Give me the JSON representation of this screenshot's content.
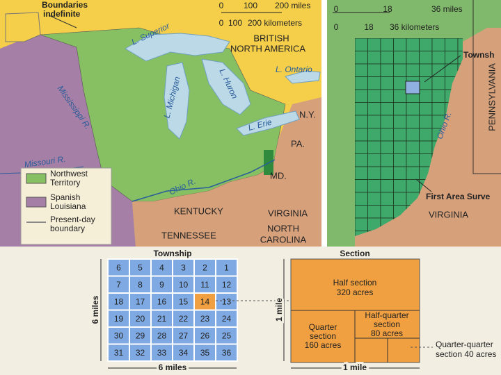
{
  "left_map": {
    "callout": [
      "Boundaries",
      "indefinite"
    ],
    "scale": {
      "miles": [
        "0",
        "100",
        "200 miles"
      ],
      "kilometers": [
        "0",
        "100",
        "200 kilometers"
      ]
    },
    "region": [
      "BRITISH",
      "NORTH AMERICA"
    ],
    "lakes": [
      "L. Superior",
      "L. Michigan",
      "L. Huron",
      "L. Ontario",
      "L. Erie"
    ],
    "rivers": [
      "Mississippi R.",
      "Missouri R.",
      "Ohio R."
    ],
    "states": [
      "N.Y.",
      "PA.",
      "MD.",
      "KENTUCKY",
      "VIRGINIA",
      "TENNESSEE",
      [
        "NORTH",
        "CAROLINA"
      ]
    ],
    "legend": [
      [
        "Northwest",
        "Territory"
      ],
      [
        "Spanish",
        "Louisiana"
      ],
      [
        "Present-day",
        "boundary"
      ]
    ]
  },
  "right_map": {
    "scale": {
      "miles": [
        "0",
        "18",
        "36 miles"
      ],
      "kilometers": [
        "0",
        "18",
        "36 kilometers"
      ]
    },
    "labels": [
      "Townsh",
      "PENNSYLVANIA",
      "Ohio R.",
      "First Area Surve",
      "VIRGINIA"
    ]
  },
  "township": {
    "title": "Township",
    "rows": [
      [
        6,
        5,
        4,
        3,
        2,
        1
      ],
      [
        7,
        8,
        9,
        10,
        11,
        12
      ],
      [
        18,
        17,
        16,
        15,
        14,
        13
      ],
      [
        19,
        20,
        21,
        22,
        23,
        24
      ],
      [
        30,
        29,
        28,
        27,
        26,
        25
      ],
      [
        31,
        32,
        33,
        34,
        35,
        36
      ]
    ],
    "side_label": "6 miles",
    "bottom_label": "6 miles"
  },
  "section": {
    "title": "Section",
    "half": [
      "Half section",
      "320 acres"
    ],
    "quarter": [
      "Quarter",
      "section",
      "160 acres"
    ],
    "half_quarter": [
      "Half-quarter",
      "section",
      "80 acres"
    ],
    "quarter_quarter": [
      "Quarter-quarter",
      "section 40 acres"
    ],
    "side_label": "1 mile",
    "bottom_label": "1 mile"
  }
}
